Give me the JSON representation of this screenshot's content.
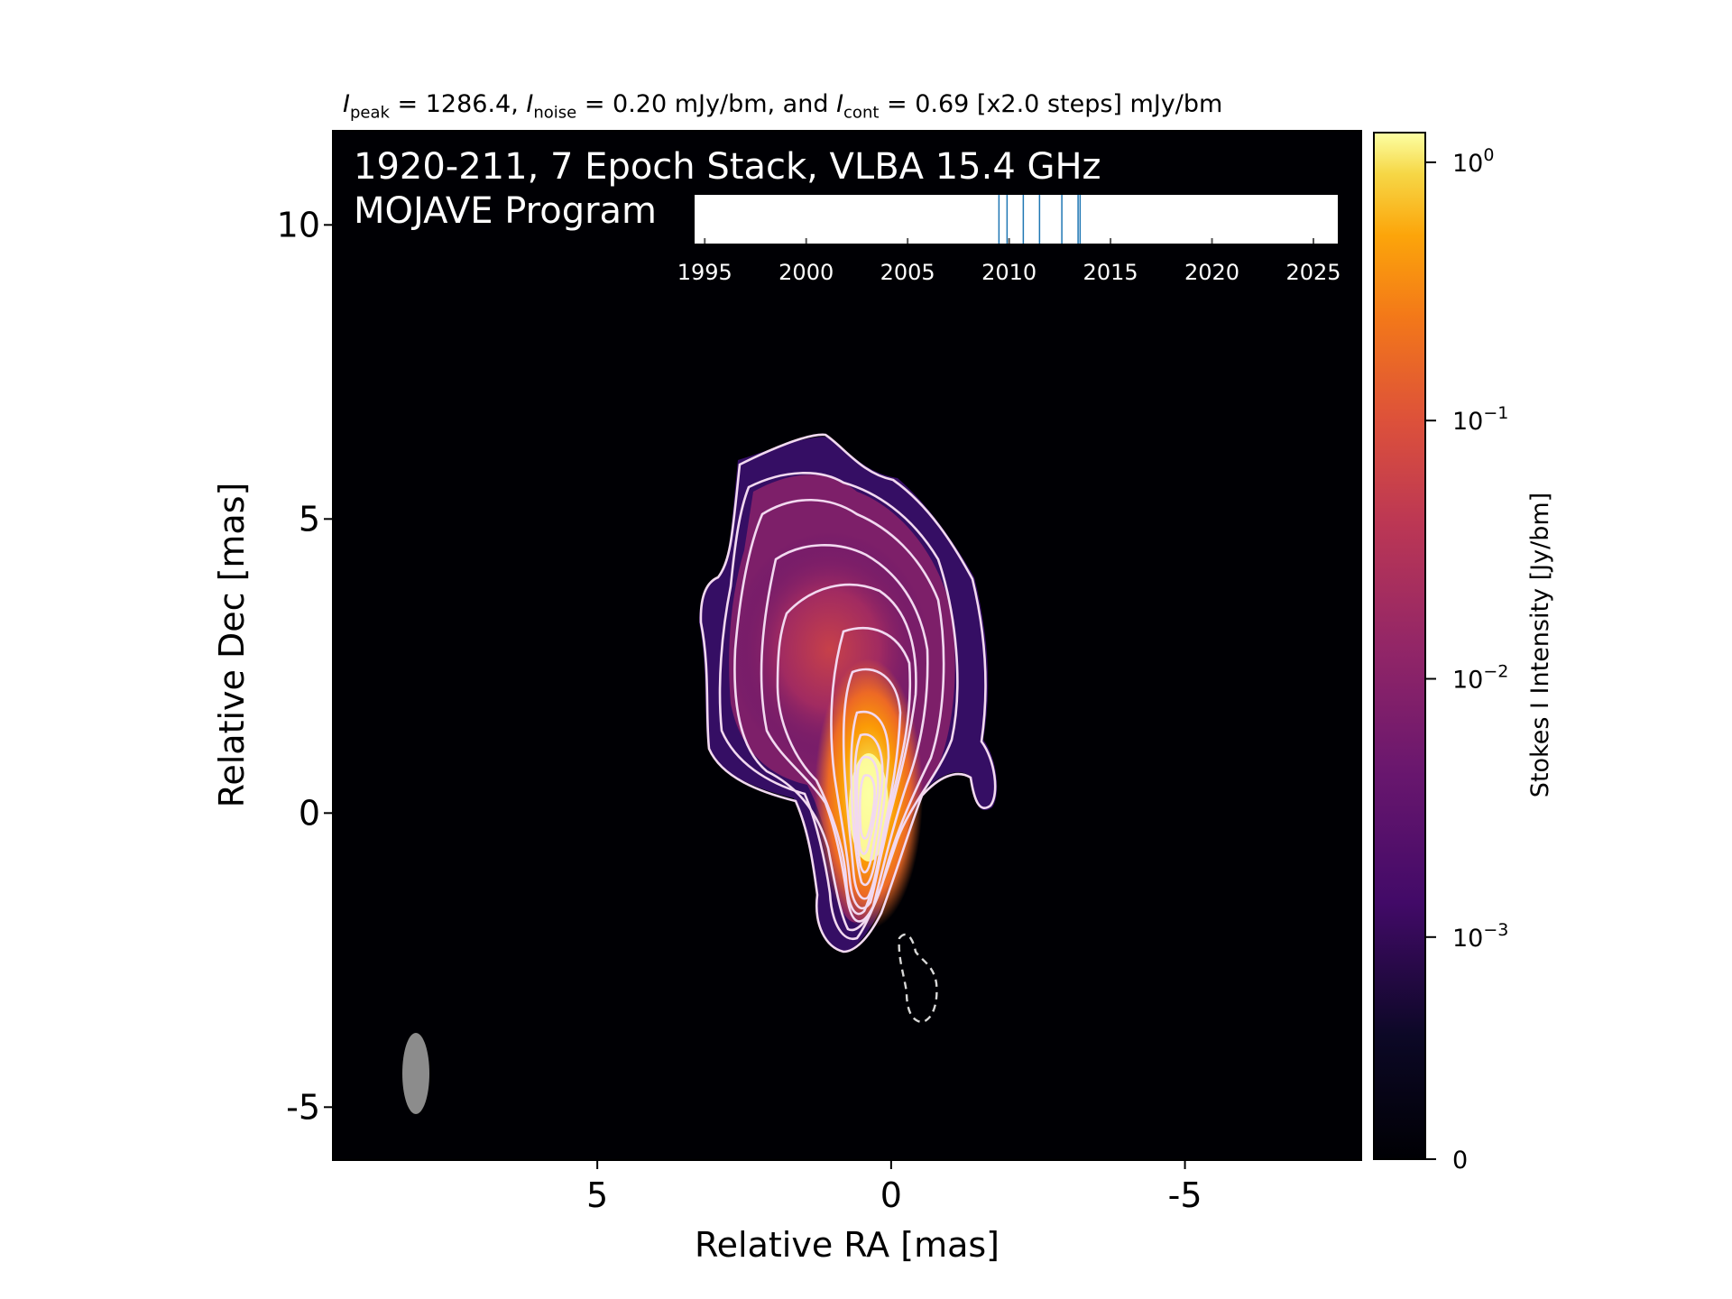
{
  "header": {
    "peak_value": "1286.4",
    "noise_value": "0.20",
    "cont_value": "0.69",
    "text_peak_sym": "I",
    "text_peak_sub": "peak",
    "text_eq1": " = ",
    "text_sep1": ", ",
    "text_noise_sym": "I",
    "text_noise_sub": "noise",
    "text_unit1": " mJy/bm, and ",
    "text_cont_sym": "I",
    "text_cont_sub": "cont",
    "text_steps": " [x2.0 steps] mJy/bm"
  },
  "panel": {
    "title_line1": "1920-211, 7 Epoch Stack, VLBA 15.4 GHz",
    "title_line2": "MOJAVE Program"
  },
  "colors": {
    "colormap": "inferno",
    "background": "#000004",
    "contour": "#f2d9f0",
    "negative_contour": "#d8d8d8",
    "beam": "#8c8c8c",
    "epoch_marker": "#1f77b4"
  },
  "chart_data": [
    {
      "type": "heatmap",
      "xlabel": "Relative RA [mas]",
      "ylabel": "Relative Dec [mas]",
      "xlim": [
        9.5,
        -8.0
      ],
      "ylim": [
        -5.9,
        11.6
      ],
      "xticks": [
        5,
        0,
        -5
      ],
      "xtick_labels": [
        "5",
        "0",
        "-5"
      ],
      "yticks": [
        -5,
        0,
        5,
        10
      ],
      "ytick_labels": [
        "-5",
        "0",
        "5",
        "10"
      ],
      "core": {
        "ra": 0.0,
        "dec": 0.0
      },
      "contour_levels_mjy": [
        0.69,
        1.38,
        2.76,
        5.52,
        11.04,
        22.08,
        44.16,
        88.32,
        176.64,
        353.28,
        706.56
      ],
      "negative_contour_level_mjy": -0.69,
      "beam": {
        "ra": 7.7,
        "dec": -4.5
      }
    },
    {
      "type": "colorbar",
      "label": "Stokes I Intensity [Jy/bm]",
      "scale": "log",
      "ticks": [
        0,
        0.001,
        0.01,
        0.1,
        1
      ],
      "tick_labels": [
        {
          "base": "0",
          "exp": ""
        },
        {
          "base": "10",
          "exp": "−3"
        },
        {
          "base": "10",
          "exp": "−2"
        },
        {
          "base": "10",
          "exp": "−1"
        },
        {
          "base": "10",
          "exp": "0"
        }
      ]
    },
    {
      "type": "scatter",
      "name": "epoch timeline",
      "xlim": [
        1994.5,
        2026.2
      ],
      "xticks": [
        1995,
        2000,
        2005,
        2010,
        2015,
        2020,
        2025
      ],
      "epochs": [
        2009.5,
        2009.9,
        2010.7,
        2011.5,
        2012.6,
        2013.4,
        2013.5
      ]
    }
  ]
}
